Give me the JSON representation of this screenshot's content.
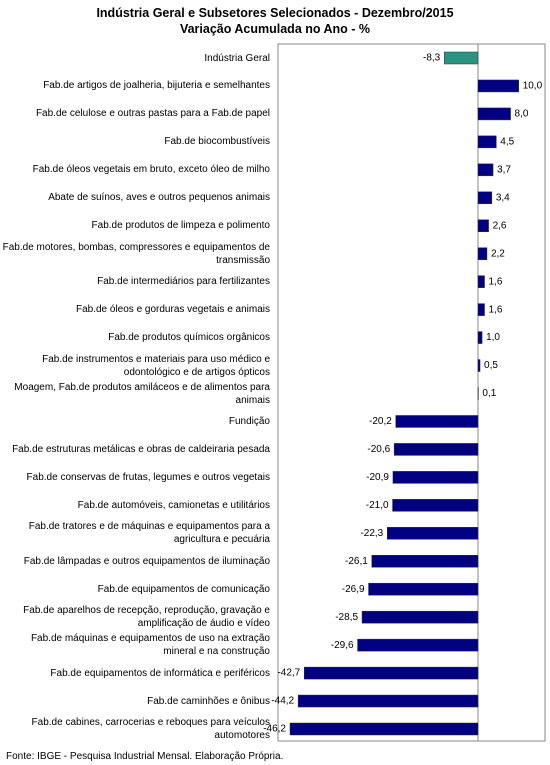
{
  "chart_data": {
    "type": "hbar",
    "title": "Indústria Geral e Subsetores Selecionados - Dezembro/2015",
    "subtitle": "Variação Acumulada no Ano - %",
    "categories": [
      "Indústria Geral",
      "Fab.de artigos de joalheria, bijuteria e semelhantes",
      "Fab.de celulose e outras pastas para a Fab.de papel",
      "Fab.de biocombustíveis",
      "Fab.de óleos vegetais em bruto, exceto óleo de milho",
      "Abate de suínos, aves e outros pequenos animais",
      "Fab.de produtos de limpeza e polimento",
      "Fab.de motores, bombas, compressores e equipamentos de transmissão",
      "Fab.de intermediários para fertilizantes",
      "Fab.de óleos e gorduras vegetais e animais",
      "Fab.de produtos químicos orgânicos",
      "Fab.de instrumentos e materiais para uso médico e odontológico e de artigos ópticos",
      "Moagem, Fab.de produtos amiláceos e de alimentos para animais",
      "Fundição",
      "Fab.de estruturas metálicas e obras de caldeiraria pesada",
      "Fab.de conservas de frutas, legumes e outros vegetais",
      "Fab.de automóveis, camionetas e utilitários",
      "Fab.de tratores e de máquinas e equipamentos para a agricultura e pecuária",
      "Fab.de lâmpadas e outros equipamentos de iluminação",
      "Fab.de equipamentos de comunicação",
      "Fab.de aparelhos de recepção, reprodução, gravação e amplificação de áudio e vídeo",
      "Fab.de máquinas e equipamentos de uso na extração mineral e na construção",
      "Fab.de equipamentos de informática e periféricos",
      "Fab.de caminhões e ônibus",
      "Fab.de cabines, carrocerias e reboques para veículos automotores"
    ],
    "values": [
      -8.3,
      10.0,
      8.0,
      4.5,
      3.7,
      3.4,
      2.6,
      2.2,
      1.6,
      1.6,
      1.0,
      0.5,
      0.1,
      -20.2,
      -20.6,
      -20.9,
      -21.0,
      -22.3,
      -26.1,
      -26.9,
      -28.5,
      -29.6,
      -42.7,
      -44.2,
      -46.2
    ],
    "value_labels": [
      "-8,3",
      "10,0",
      "8,0",
      "4,5",
      "3,7",
      "3,4",
      "2,6",
      "2,2",
      "1,6",
      "1,6",
      "1,0",
      "0,5",
      "0,1",
      "-20,2",
      "-20,6",
      "-20,9",
      "-21,0",
      "-22,3",
      "-26,1",
      "-26,9",
      "-28,5",
      "-29,6",
      "-42,7",
      "-44,2",
      "-46,2"
    ],
    "colors": [
      "#2a9480",
      "#000080",
      "#000080",
      "#000080",
      "#000080",
      "#000080",
      "#000080",
      "#000080",
      "#000080",
      "#000080",
      "#000080",
      "#000080",
      "#000080",
      "#000080",
      "#000080",
      "#000080",
      "#000080",
      "#000080",
      "#000080",
      "#000080",
      "#000080",
      "#000080",
      "#000080",
      "#000080",
      "#000080"
    ],
    "source": "Fonte: IBGE - Pesquisa Industrial Mensal. Elaboração Própria."
  }
}
